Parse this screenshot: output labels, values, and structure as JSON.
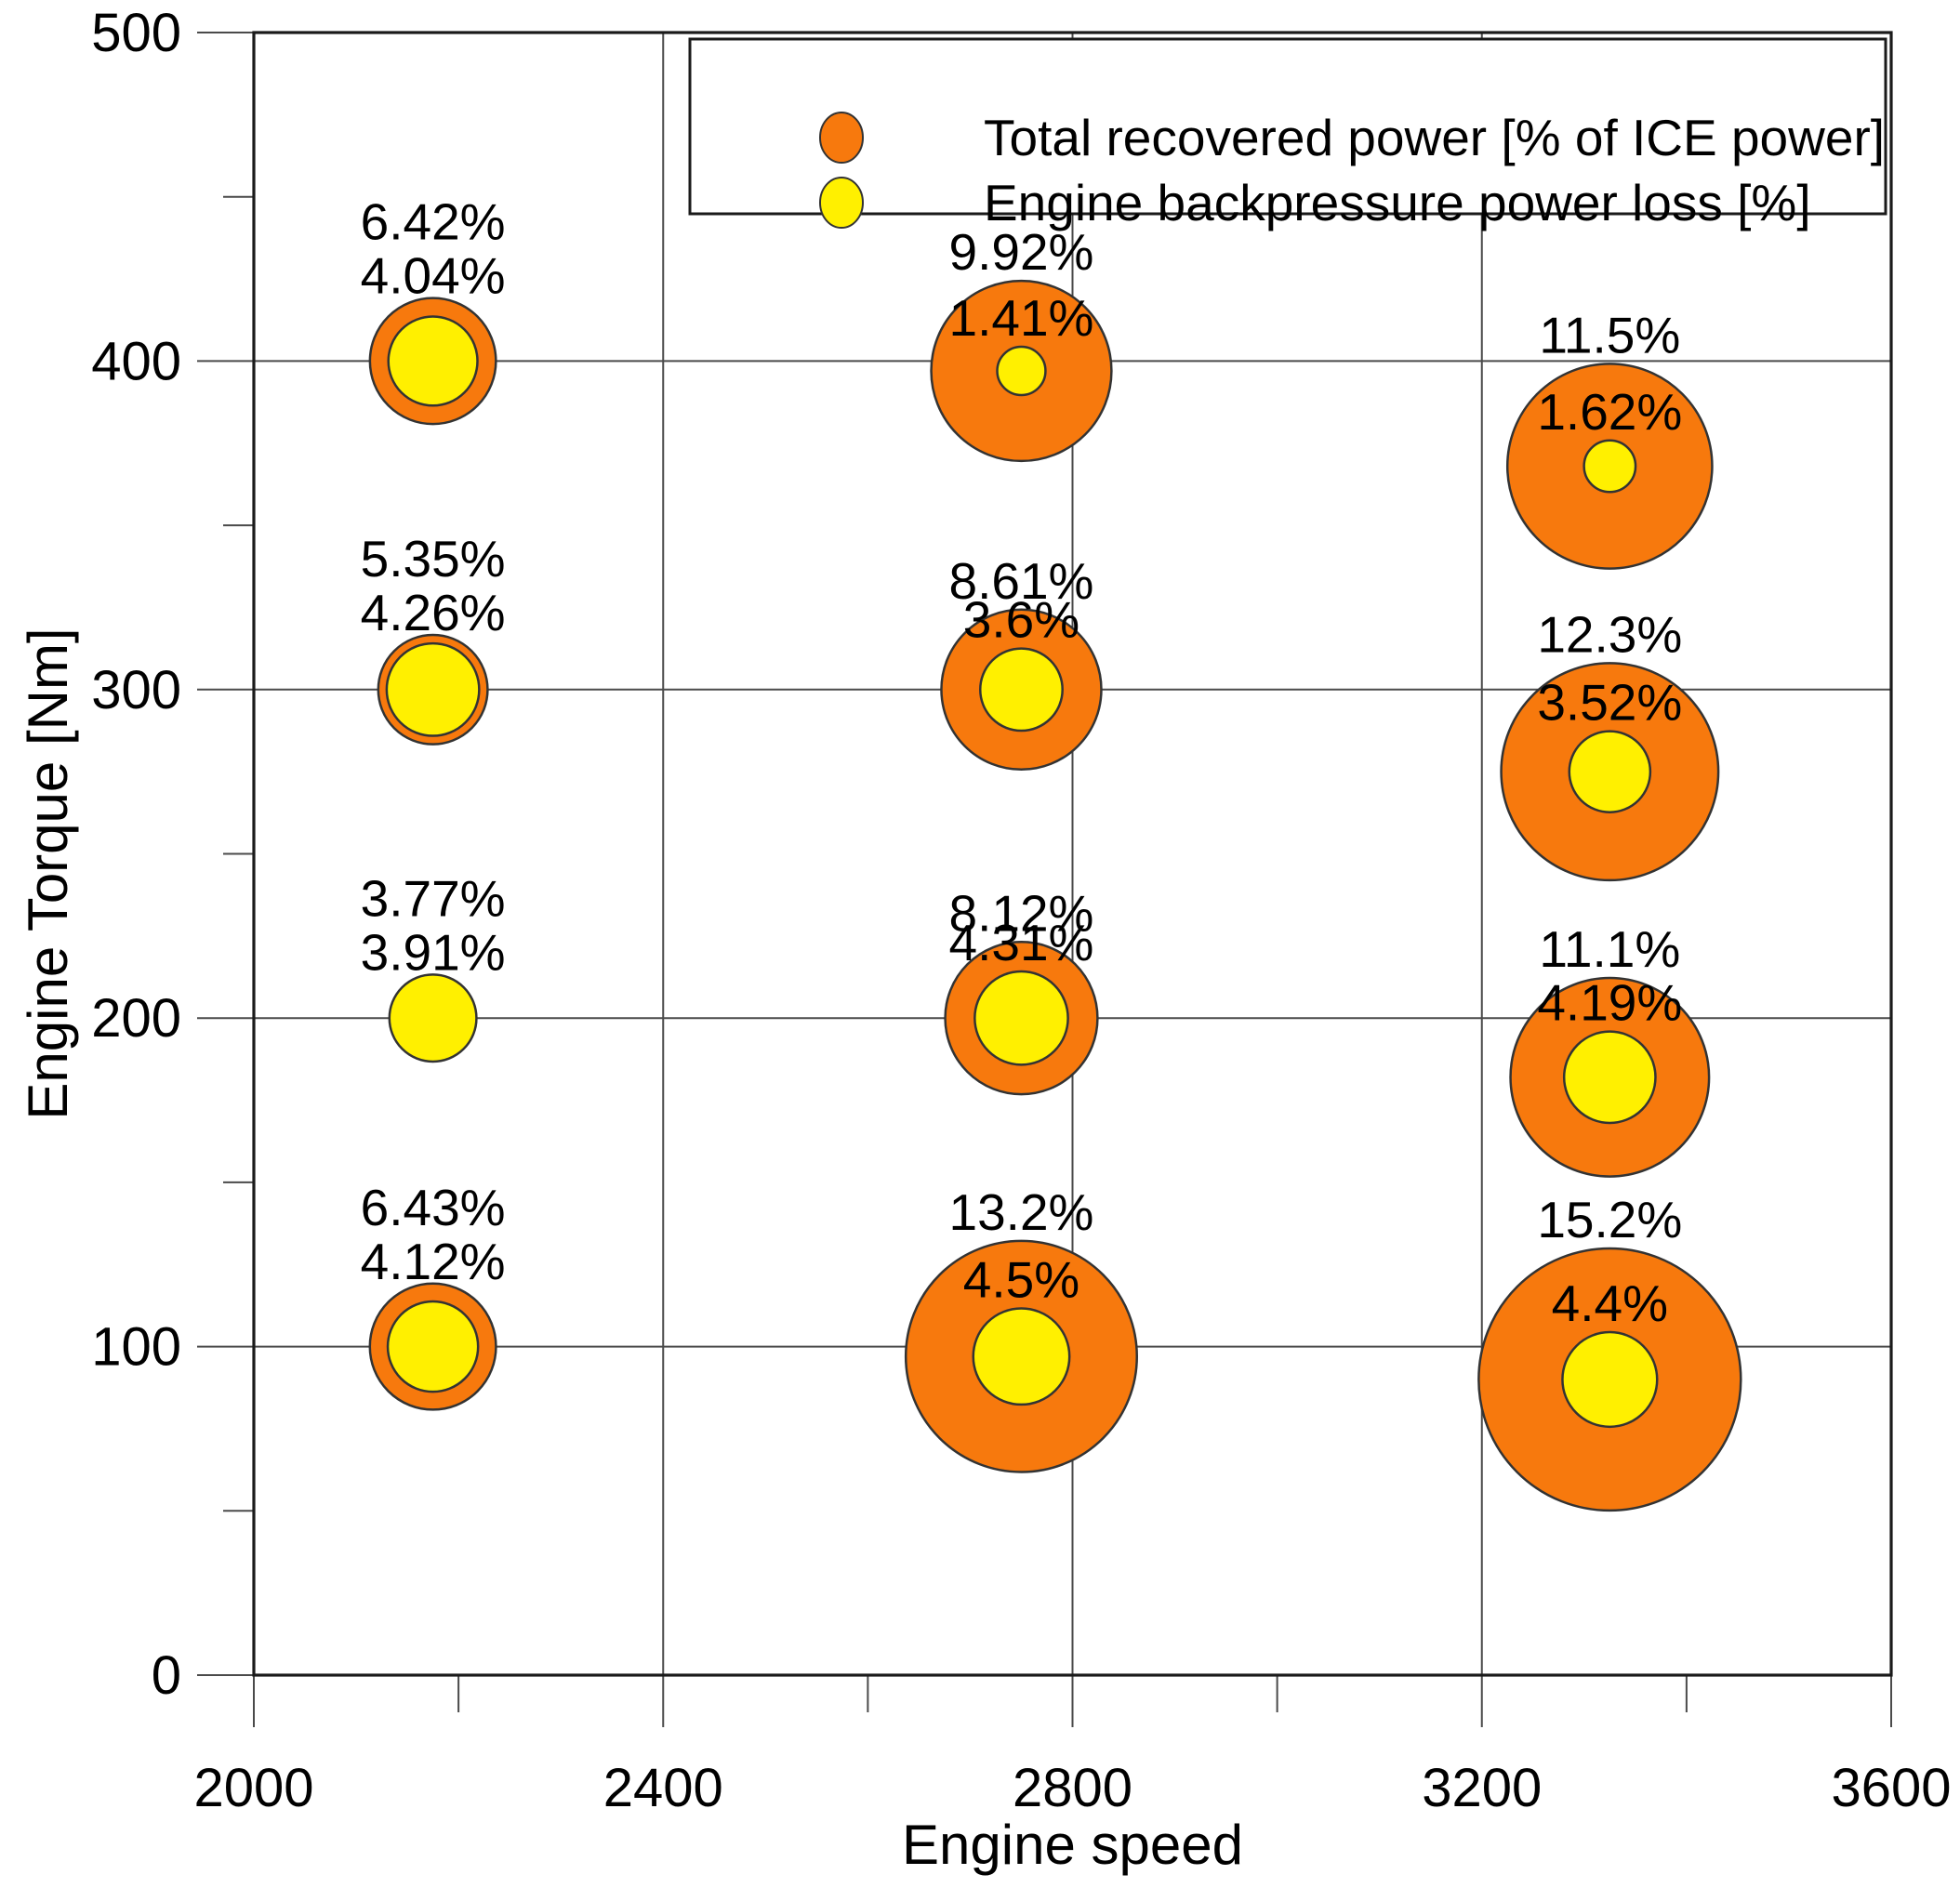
{
  "page": {
    "background": "#ffffff"
  },
  "chart_data": {
    "type": "bubble",
    "title": "",
    "x_axis": {
      "label": "Engine speed",
      "min": 2000,
      "max": 3600,
      "major_ticks": [
        2000,
        2400,
        2800,
        3200,
        3600
      ],
      "minor_ticks": [
        2200,
        2600,
        3000,
        3400
      ],
      "grid": true
    },
    "y_axis": {
      "label": "Engine Torque [Nm]",
      "min": 0,
      "max": 500,
      "major_ticks": [
        0,
        100,
        200,
        300,
        400,
        500
      ],
      "minor_ticks": [
        50,
        150,
        250,
        350,
        450
      ],
      "grid": true
    },
    "legend": {
      "position": "top",
      "items": [
        {
          "label": "Total recovered power [% of ICE power]",
          "color": "#F7790D"
        },
        {
          "label": "Engine backpressure power loss [%]",
          "color": "#FFF000"
        }
      ]
    },
    "series": [
      {
        "name": "Total recovered power [% of ICE power]",
        "color": "#F7790D"
      },
      {
        "name": "Engine backpressure power loss [%]",
        "color": "#FFF000"
      }
    ],
    "points": [
      {
        "rpm": 2175,
        "torque": 400,
        "torque_display": 400,
        "recovered_pct": 6.42,
        "recovered_label": "6.42%",
        "backpressure_pct": 4.04,
        "backpressure_label": "4.04%"
      },
      {
        "rpm": 2175,
        "torque": 300,
        "torque_display": 300,
        "recovered_pct": 5.35,
        "recovered_label": "5.35%",
        "backpressure_pct": 4.26,
        "backpressure_label": "4.26%"
      },
      {
        "rpm": 2175,
        "torque": 200,
        "torque_display": 200,
        "recovered_pct": 3.77,
        "recovered_label": "3.77%",
        "backpressure_pct": 3.91,
        "backpressure_label": "3.91%"
      },
      {
        "rpm": 2175,
        "torque": 100,
        "torque_display": 100,
        "recovered_pct": 6.43,
        "recovered_label": "6.43%",
        "backpressure_pct": 4.12,
        "backpressure_label": "4.12%"
      },
      {
        "rpm": 2750,
        "torque": 400,
        "torque_display": 397,
        "recovered_pct": 9.92,
        "recovered_label": "9.92%",
        "backpressure_pct": 1.41,
        "backpressure_label": "1.41%"
      },
      {
        "rpm": 2750,
        "torque": 300,
        "torque_display": 300,
        "recovered_pct": 8.61,
        "recovered_label": "8.61%",
        "backpressure_pct": 3.6,
        "backpressure_label": "3.6%"
      },
      {
        "rpm": 2750,
        "torque": 200,
        "torque_display": 200,
        "recovered_pct": 8.12,
        "recovered_label": "8.12%",
        "backpressure_pct": 4.31,
        "backpressure_label": "4.31%"
      },
      {
        "rpm": 2750,
        "torque": 100,
        "torque_display": 97,
        "recovered_pct": 13.2,
        "recovered_label": "13.2%",
        "backpressure_pct": 4.5,
        "backpressure_label": "4.5%"
      },
      {
        "rpm": 3325,
        "torque": 400,
        "torque_display": 368,
        "recovered_pct": 11.5,
        "recovered_label": "11.5%",
        "backpressure_pct": 1.62,
        "backpressure_label": "1.62%"
      },
      {
        "rpm": 3325,
        "torque": 300,
        "torque_display": 275,
        "recovered_pct": 12.3,
        "recovered_label": "12.3%",
        "backpressure_pct": 3.52,
        "backpressure_label": "3.52%"
      },
      {
        "rpm": 3325,
        "torque": 200,
        "torque_display": 182,
        "recovered_pct": 11.1,
        "recovered_label": "11.1%",
        "backpressure_pct": 4.19,
        "backpressure_label": "4.19%"
      },
      {
        "rpm": 3325,
        "torque": 100,
        "torque_display": 90,
        "recovered_pct": 15.2,
        "recovered_label": "15.2%",
        "backpressure_pct": 4.4,
        "backpressure_label": "4.4%"
      }
    ],
    "colors": {
      "recovered": "#F7790D",
      "backpressure": "#FFF000",
      "outline": "#333333",
      "grid": "#4a4a4a",
      "frame": "#1a1a1a",
      "text": "#000000"
    }
  }
}
